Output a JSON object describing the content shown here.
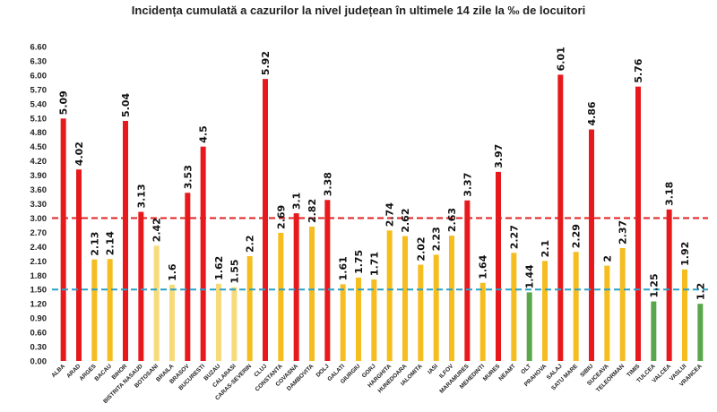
{
  "chart_data": {
    "type": "bar",
    "title": "Incidența cumulată a cazurilor la nivel județean în ultimele 14 zile la ‰ de locuitori",
    "xlabel": "",
    "ylabel": "",
    "ylim": [
      0,
      6.6
    ],
    "yticks": [
      "0.00",
      "0.30",
      "0.60",
      "0.90",
      "1.20",
      "1.50",
      "1.80",
      "2.10",
      "2.40",
      "2.70",
      "3.00",
      "3.30",
      "3.60",
      "3.90",
      "4.20",
      "4.50",
      "4.80",
      "5.10",
      "5.40",
      "5.70",
      "6.00",
      "6.30",
      "6.60"
    ],
    "grid": false,
    "reference_lines": [
      {
        "value": 3.0,
        "color": "#e02020",
        "style": "dashed"
      },
      {
        "value": 1.5,
        "color": "#2aa0c8",
        "style": "dashed"
      }
    ],
    "categories": [
      "ALBA",
      "ARAD",
      "ARGES",
      "BACAU",
      "BIHOR",
      "BISTRITA NASAUD",
      "BOTOSANI",
      "BRAILA",
      "BRASOV",
      "BUCURESTI",
      "BUZAU",
      "CALARASI",
      "CARAS-SEVERIN",
      "CLUJ",
      "CONSTANTA",
      "COVASNA",
      "DAMBOVITA",
      "DOLJ",
      "GALATI",
      "GIURGIU",
      "GORJ",
      "HARGHITA",
      "HUNEDOARA",
      "IALOMITA",
      "IASI",
      "ILFOV",
      "MARAMURES",
      "MEHEDINTI",
      "MURES",
      "NEAMT",
      "OLT",
      "PRAHOVA",
      "SALAJ",
      "SATU MARE",
      "SIBIU",
      "SUCEAVA",
      "TELEORMAN",
      "TIMIS",
      "TULCEA",
      "VALCEA",
      "VASLUI",
      "VRANCEA"
    ],
    "values": [
      5.09,
      4.02,
      2.13,
      2.14,
      5.04,
      3.13,
      2.42,
      1.6,
      3.53,
      4.5,
      1.62,
      1.55,
      2.2,
      5.92,
      2.69,
      3.1,
      2.82,
      3.38,
      1.61,
      1.75,
      1.71,
      2.74,
      2.62,
      2.02,
      2.23,
      2.63,
      3.37,
      1.64,
      3.97,
      2.27,
      1.44,
      2.1,
      6.01,
      2.29,
      4.86,
      2,
      2.37,
      5.76,
      1.25,
      3.18,
      1.92,
      1.2
    ],
    "data_labels": [
      "5.09",
      "4.02",
      "2.13",
      "2.14",
      "5.04",
      "3.13",
      "2.42",
      "1.6",
      "3.53",
      "4.5",
      "1.62",
      "1.55",
      "2.2",
      "5.92",
      "2.69",
      "3.1",
      "2.82",
      "3.38",
      "1.61",
      "1.75",
      "1.71",
      "2.74",
      "2.62",
      "2.02",
      "2.23",
      "2.63",
      "3.37",
      "1.64",
      "3.97",
      "2.27",
      "1.44",
      "2.1",
      "6.01",
      "2.29",
      "4.86",
      "2",
      "2.37",
      "5.76",
      "1.25",
      "3.18",
      "1.92",
      "1.2"
    ],
    "bar_colors": [
      "#e8191c",
      "#e8191c",
      "#f5bd20",
      "#f5bd20",
      "#e8191c",
      "#e8191c",
      "#f7db7a",
      "#f7db7a",
      "#e8191c",
      "#e8191c",
      "#f7db7a",
      "#f7db7a",
      "#f5bd20",
      "#e8191c",
      "#f5bd20",
      "#e8191c",
      "#f5bd20",
      "#e8191c",
      "#f5bd20",
      "#f5bd20",
      "#f5bd20",
      "#f5bd20",
      "#f5bd20",
      "#f5bd20",
      "#f5bd20",
      "#f5bd20",
      "#e8191c",
      "#f5bd20",
      "#e8191c",
      "#f5bd20",
      "#5aa64a",
      "#f5bd20",
      "#e8191c",
      "#f5bd20",
      "#e8191c",
      "#f5bd20",
      "#f5bd20",
      "#e8191c",
      "#5aa64a",
      "#e8191c",
      "#f5bd20",
      "#5aa64a"
    ]
  }
}
